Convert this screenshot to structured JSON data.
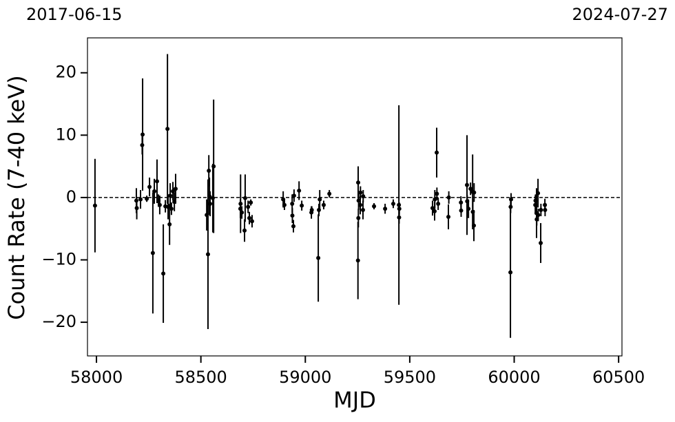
{
  "chart_data": {
    "type": "scatter",
    "top_left_label": "2017-06-15",
    "top_right_label": "2024-07-27",
    "x_label": "MJD",
    "y_label": "Count Rate (7-40 keV)",
    "color": "#000000",
    "hline": 0,
    "xlim": [
      57957,
      60516
    ],
    "ylim": [
      -25.4,
      25.6
    ],
    "xticks": [
      58000,
      58500,
      59000,
      59500,
      60000,
      60500
    ],
    "yticks": [
      {
        "value": -20,
        "label": "−20"
      },
      {
        "value": -10,
        "label": "−10"
      },
      0,
      10,
      20
    ],
    "x": [
      57993,
      58191,
      58193,
      58211,
      58221,
      58219,
      58241,
      58254,
      58270,
      58277,
      58290,
      58297,
      58303,
      58320,
      58330,
      58340,
      58343,
      58350,
      58353,
      58359,
      58366,
      58373,
      58379,
      58528,
      58534,
      58538,
      58541,
      58544,
      58557,
      58561,
      58689,
      58690,
      58696,
      58709,
      58712,
      58726,
      58732,
      58739,
      58745,
      58894,
      58900,
      58937,
      58938,
      58943,
      58946,
      58970,
      58983,
      59029,
      59031,
      59062,
      59065,
      59069,
      59088,
      59115,
      59252,
      59253,
      59254,
      59255,
      59263,
      59264,
      59276,
      59277,
      59329,
      59382,
      59421,
      59448,
      59449,
      59450,
      59609,
      59619,
      59620,
      59629,
      59630,
      59636,
      59685,
      59687,
      59745,
      59746,
      59774,
      59775,
      59781,
      59791,
      59801,
      59802,
      59807,
      59808,
      59982,
      59983,
      59985,
      60101,
      60102,
      60107,
      60108,
      60114,
      60115,
      60127,
      60128,
      60147,
      60148
    ],
    "values": [
      -1.3,
      -0.5,
      -1.7,
      -0.3,
      10.1,
      8.4,
      -0.2,
      1.7,
      -8.9,
      1.0,
      2.6,
      -0.5,
      -1.2,
      -12.2,
      -1.4,
      11.0,
      -1.5,
      -4.3,
      0.3,
      -1.8,
      1.0,
      -0.7,
      1.4,
      -2.8,
      -9.1,
      4.3,
      0.2,
      -1.0,
      -0.1,
      5.0,
      -1.8,
      -1.0,
      -2.4,
      -5.3,
      -0.1,
      -1.5,
      -3.3,
      -0.8,
      -3.8,
      -0.3,
      -1.2,
      -1.0,
      -2.9,
      -4.6,
      0.3,
      1.1,
      -1.3,
      -2.4,
      -2.0,
      -9.7,
      -2.0,
      -0.3,
      -1.2,
      0.6,
      -10.1,
      2.4,
      -3.3,
      -0.5,
      -1.2,
      0.8,
      -2.0,
      0.2,
      -1.4,
      -1.8,
      -1.0,
      -1.2,
      -3.2,
      -1.8,
      -1.7,
      -2.2,
      -0.3,
      7.2,
      0.6,
      -1.0,
      -3.1,
      0.0,
      -0.8,
      -2.1,
      2.0,
      -0.6,
      -1.8,
      1.4,
      0.9,
      -2.3,
      -4.5,
      0.8,
      -12.0,
      -1.5,
      -0.3,
      -1.2,
      -0.5,
      -2.5,
      -3.5,
      0.7,
      -2.8,
      -7.3,
      -2.0,
      -1.2,
      -2.0
    ],
    "errors": [
      7.5,
      2,
      1.8,
      1.5,
      9,
      1.5,
      0.5,
      1.5,
      9.7,
      2,
      3.5,
      1,
      1.5,
      7.9,
      1,
      12,
      2,
      3.3,
      2,
      1,
      1.5,
      1.5,
      2.4,
      2.5,
      12,
      2.5,
      3,
      2,
      5.5,
      10.7,
      1.5,
      4.7,
      1,
      1.8,
      3.8,
      1,
      1,
      0.5,
      1,
      1.3,
      0.8,
      1.5,
      1.2,
      1,
      1,
      1.5,
      0.8,
      1,
      0.6,
      7,
      1,
      1.5,
      0.7,
      0.6,
      6.2,
      2.6,
      1.5,
      1.5,
      1.5,
      1,
      1.5,
      1,
      0.5,
      0.8,
      0.7,
      16,
      1,
      1,
      1.2,
      1.5,
      1.5,
      4,
      1,
      1,
      2,
      1,
      1,
      1,
      8,
      1,
      1.5,
      1,
      6,
      2,
      2.5,
      1.5,
      10.5,
      1,
      1,
      1.5,
      1,
      4,
      1,
      2.3,
      1,
      3.2,
      1,
      1,
      1
    ]
  }
}
